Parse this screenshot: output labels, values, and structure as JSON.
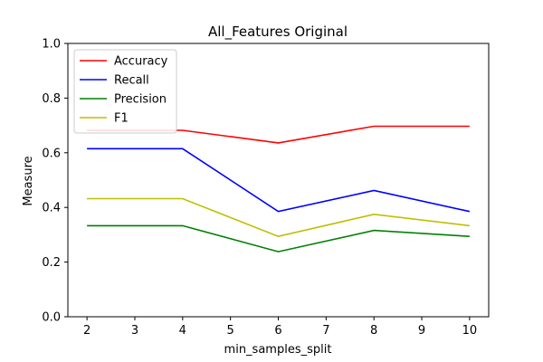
{
  "chart_data": {
    "type": "line",
    "title": "All_Features Original",
    "xlabel": "min_samples_split",
    "ylabel": "Measure",
    "x": [
      2,
      4,
      6,
      8,
      10
    ],
    "xlim": [
      1.6,
      10.4
    ],
    "ylim": [
      0.0,
      1.0
    ],
    "xticks": [
      2,
      3,
      4,
      5,
      6,
      7,
      8,
      9,
      10
    ],
    "yticks": [
      0.0,
      0.2,
      0.4,
      0.6,
      0.8,
      1.0
    ],
    "xtick_labels": [
      "2",
      "3",
      "4",
      "5",
      "6",
      "7",
      "8",
      "9",
      "10"
    ],
    "ytick_labels": [
      "0.0",
      "0.2",
      "0.4",
      "0.6",
      "0.8",
      "1.0"
    ],
    "grid": false,
    "legend_position": "top-left",
    "series": [
      {
        "name": "Accuracy",
        "color": "#ff0000",
        "values": [
          0.682,
          0.682,
          0.636,
          0.697,
          0.697
        ]
      },
      {
        "name": "Recall",
        "color": "#0000ff",
        "values": [
          0.615,
          0.615,
          0.385,
          0.462,
          0.385
        ]
      },
      {
        "name": "Precision",
        "color": "#008000",
        "values": [
          0.333,
          0.333,
          0.238,
          0.316,
          0.294
        ]
      },
      {
        "name": "F1",
        "color": "#bfbf00",
        "values": [
          0.432,
          0.432,
          0.294,
          0.375,
          0.333
        ]
      }
    ]
  }
}
